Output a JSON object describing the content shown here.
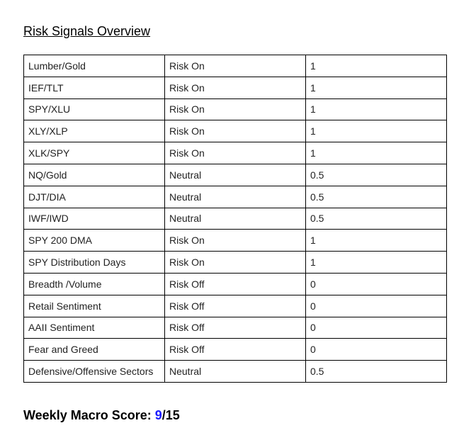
{
  "title": "Risk Signals Overview",
  "rows": [
    [
      "Lumber/Gold",
      "Risk On",
      "1"
    ],
    [
      "IEF/TLT",
      "Risk On",
      "1"
    ],
    [
      "SPY/XLU",
      "Risk On",
      "1"
    ],
    [
      "XLY/XLP",
      "Risk On",
      "1"
    ],
    [
      "XLK/SPY",
      "Risk On",
      "1"
    ],
    [
      "NQ/Gold",
      "Neutral",
      "0.5"
    ],
    [
      "DJT/DIA",
      "Neutral",
      "0.5"
    ],
    [
      "IWF/IWD",
      "Neutral",
      "0.5"
    ],
    [
      "SPY 200 DMA",
      "Risk On",
      "1"
    ],
    [
      "SPY Distribution Days",
      "Risk On",
      "1"
    ],
    [
      "Breadth /Volume",
      "Risk Off",
      "0"
    ],
    [
      "Retail Sentiment",
      "Risk Off",
      "0"
    ],
    [
      "AAII Sentiment",
      "Risk Off",
      "0"
    ],
    [
      "Fear and Greed",
      "Risk Off",
      "0"
    ],
    [
      "Defensive/Offensive Sectors",
      "Neutral",
      "0.5"
    ]
  ],
  "score": {
    "label": "Weekly Macro Score: ",
    "value": "9",
    "total": "/15",
    "value_color": "#1a1aff"
  }
}
